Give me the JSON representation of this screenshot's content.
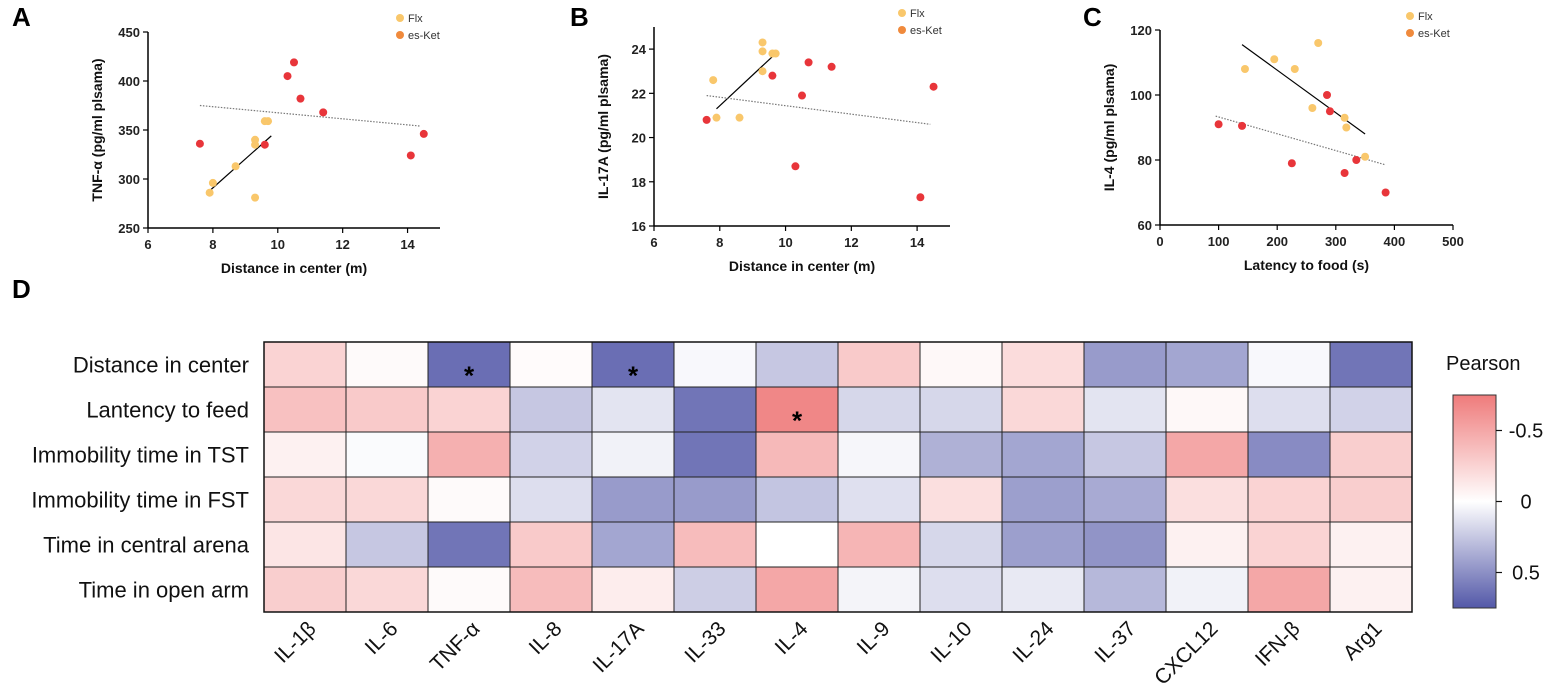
{
  "colors": {
    "flx": "#f9c76b",
    "esket": "#e8353a",
    "legend_esket": "#f08a3c",
    "trend_flx": "#000000",
    "trend_all": "#777777",
    "heat_neg": "#ef7b7b",
    "heat_zero": "#ffffff",
    "heat_pos": "#5358a8"
  },
  "chart_data": [
    {
      "panel": "A",
      "type": "scatter",
      "xlabel": "Distance in center (m)",
      "ylabel": "TNF-α (pg/ml plsama)",
      "xlim": [
        6,
        15
      ],
      "ylim": [
        250,
        450
      ],
      "xticks": [
        "6",
        "8",
        "10",
        "12",
        "14"
      ],
      "yticks": [
        "250",
        "300",
        "350",
        "400",
        "450"
      ],
      "legend": [
        "Flx",
        "es-Ket"
      ],
      "series": [
        {
          "name": "Flx",
          "points": [
            [
              7.9,
              286
            ],
            [
              8.0,
              296
            ],
            [
              8.7,
              313
            ],
            [
              9.3,
              340
            ],
            [
              9.3,
              335
            ],
            [
              9.6,
              359
            ],
            [
              9.7,
              359
            ],
            [
              9.3,
              281
            ]
          ]
        },
        {
          "name": "es-Ket",
          "points": [
            [
              7.6,
              336
            ],
            [
              9.6,
              335
            ],
            [
              10.3,
              405
            ],
            [
              10.5,
              419
            ],
            [
              10.7,
              382
            ],
            [
              11.4,
              368
            ],
            [
              14.1,
              324
            ],
            [
              14.5,
              346
            ]
          ]
        }
      ],
      "trend_lines": [
        {
          "name": "Flx fit",
          "from": [
            7.9,
            288
          ],
          "to": [
            9.8,
            344
          ]
        },
        {
          "name": "All fit",
          "from": [
            7.6,
            375
          ],
          "to": [
            14.4,
            354
          ]
        }
      ]
    },
    {
      "panel": "B",
      "type": "scatter",
      "xlabel": "Distance in center (m)",
      "ylabel": "IL-17A (pg/ml plsama)",
      "xlim": [
        6,
        15
      ],
      "ylim": [
        16,
        25
      ],
      "xticks": [
        "6",
        "8",
        "10",
        "12",
        "14"
      ],
      "yticks": [
        "16",
        "18",
        "20",
        "22",
        "24"
      ],
      "legend": [
        "Flx",
        "es-Ket"
      ],
      "series": [
        {
          "name": "Flx",
          "points": [
            [
              7.8,
              22.6
            ],
            [
              7.9,
              20.9
            ],
            [
              8.6,
              20.9
            ],
            [
              9.3,
              24.3
            ],
            [
              9.3,
              23.9
            ],
            [
              9.3,
              23.0
            ],
            [
              9.6,
              23.8
            ],
            [
              9.7,
              23.8
            ]
          ]
        },
        {
          "name": "es-Ket",
          "points": [
            [
              7.6,
              20.8
            ],
            [
              9.6,
              22.8
            ],
            [
              10.3,
              18.7
            ],
            [
              10.5,
              21.9
            ],
            [
              10.7,
              23.4
            ],
            [
              11.4,
              23.2
            ],
            [
              14.1,
              17.3
            ],
            [
              14.5,
              22.3
            ]
          ]
        }
      ],
      "trend_lines": [
        {
          "name": "Flx fit",
          "from": [
            7.9,
            21.3
          ],
          "to": [
            9.7,
            23.8
          ]
        },
        {
          "name": "All fit",
          "from": [
            7.6,
            21.9
          ],
          "to": [
            14.4,
            20.6
          ]
        }
      ]
    },
    {
      "panel": "C",
      "type": "scatter",
      "xlabel": "Latency to food (s)",
      "ylabel": "IL-4 (pg/ml plsama)",
      "xlim": [
        0,
        500
      ],
      "ylim": [
        60,
        120
      ],
      "xticks": [
        "0",
        "100",
        "200",
        "300",
        "400",
        "500"
      ],
      "yticks": [
        "60",
        "80",
        "100",
        "120"
      ],
      "legend": [
        "Flx",
        "es-Ket"
      ],
      "series": [
        {
          "name": "Flx",
          "points": [
            [
              145,
              108
            ],
            [
              195,
              111
            ],
            [
              230,
              108
            ],
            [
              260,
              96
            ],
            [
              270,
              116
            ],
            [
              315,
              93
            ],
            [
              318,
              90
            ],
            [
              350,
              81
            ]
          ]
        },
        {
          "name": "es-Ket",
          "points": [
            [
              100,
              91
            ],
            [
              140,
              90.5
            ],
            [
              225,
              79
            ],
            [
              285,
              100
            ],
            [
              290,
              95
            ],
            [
              315,
              76
            ],
            [
              335,
              80
            ],
            [
              385,
              70
            ]
          ]
        }
      ],
      "trend_lines": [
        {
          "name": "Flx fit",
          "from": [
            140,
            115.5
          ],
          "to": [
            350,
            88
          ]
        },
        {
          "name": "All fit",
          "from": [
            95,
            93.5
          ],
          "to": [
            385,
            78.5
          ]
        }
      ]
    },
    {
      "panel": "D",
      "type": "heatmap",
      "legend_title": "Pearson",
      "colorbar_ticks": [
        {
          "label": "-0.5",
          "value": -0.5
        },
        {
          "label": "0",
          "value": 0
        },
        {
          "label": "0.5",
          "value": 0.5
        }
      ],
      "zlim": [
        -0.75,
        0.75
      ],
      "rows": [
        "Distance in center",
        "Lantency to feed",
        "Immobility time in TST",
        "Immobility time in FST",
        "Time in central arena",
        "Time in open arm"
      ],
      "columns": [
        "IL-1β",
        "IL-6",
        "TNF-α",
        "IL-8",
        "IL-17A",
        "IL-33",
        "IL-4",
        "IL-9",
        "IL-10",
        "IL-24",
        "IL-37",
        "CXCL12",
        "IFN-β",
        "Arg1"
      ],
      "values": [
        [
          -0.25,
          -0.03,
          0.65,
          -0.02,
          0.65,
          0.03,
          0.25,
          -0.3,
          -0.04,
          -0.2,
          0.45,
          0.4,
          0.03,
          0.62
        ],
        [
          -0.35,
          -0.3,
          -0.25,
          0.25,
          0.12,
          0.62,
          -0.68,
          0.18,
          0.18,
          -0.22,
          0.12,
          -0.04,
          0.15,
          0.2
        ],
        [
          -0.08,
          0.02,
          -0.45,
          0.2,
          0.06,
          0.62,
          -0.4,
          0.04,
          0.35,
          0.4,
          0.25,
          -0.5,
          0.52,
          -0.28
        ],
        [
          -0.22,
          -0.22,
          -0.03,
          0.15,
          0.45,
          0.45,
          0.26,
          0.14,
          -0.18,
          0.43,
          0.38,
          -0.18,
          -0.25,
          -0.28
        ],
        [
          -0.15,
          0.25,
          0.62,
          -0.3,
          0.4,
          -0.38,
          0.0,
          -0.42,
          0.18,
          0.43,
          0.48,
          -0.08,
          -0.25,
          -0.08
        ],
        [
          -0.28,
          -0.22,
          -0.03,
          -0.38,
          -0.1,
          0.22,
          -0.5,
          0.05,
          0.15,
          0.1,
          0.32,
          0.06,
          -0.5,
          -0.08
        ]
      ],
      "significant": [
        [
          0,
          2
        ],
        [
          0,
          4
        ],
        [
          1,
          6
        ]
      ],
      "significance_mark": "*"
    }
  ]
}
